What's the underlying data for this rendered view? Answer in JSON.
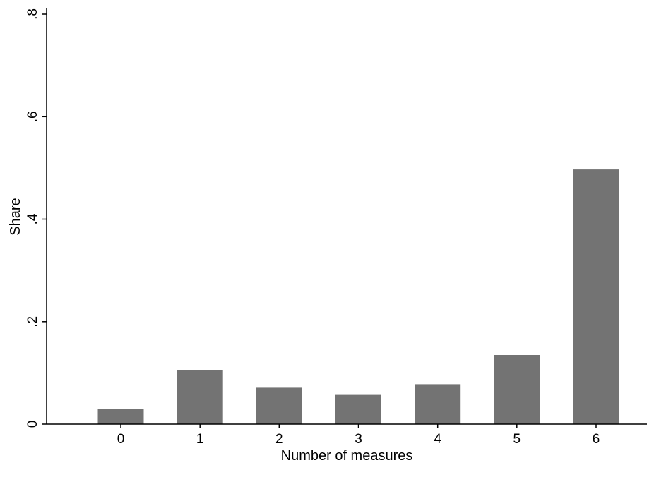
{
  "chart_data": {
    "type": "bar",
    "categories": [
      "0",
      "1",
      "2",
      "3",
      "4",
      "5",
      "6"
    ],
    "values": [
      0.03,
      0.106,
      0.071,
      0.057,
      0.078,
      0.135,
      0.497
    ],
    "xlabel": "Number of measures",
    "ylabel": "Share",
    "ylim": [
      0,
      0.8
    ],
    "yticks": [
      0,
      0.2,
      0.4,
      0.6,
      0.8
    ],
    "ytick_labels": [
      "0",
      ".2",
      ".4",
      ".6",
      ".8"
    ],
    "grid": false,
    "bar_color": "#737373",
    "background": "#ffffff"
  }
}
